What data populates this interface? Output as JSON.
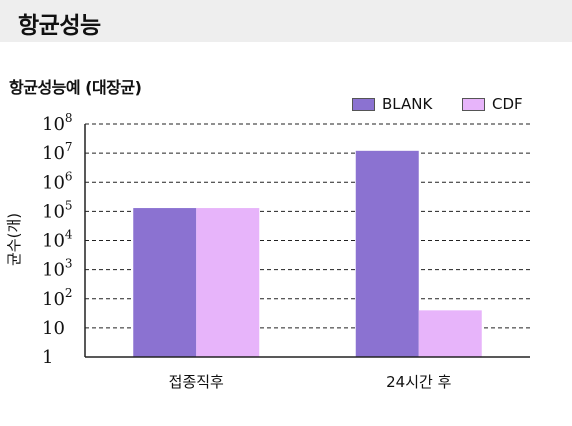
{
  "section": {
    "title": "항균성능"
  },
  "chart_data": {
    "type": "bar",
    "title": "항균성능예 (대장균)",
    "ylabel": "균수(개)",
    "xlabel": "",
    "yscale": "log",
    "ylim": [
      1,
      100000000
    ],
    "yticks": [
      {
        "value": 1,
        "base": "1",
        "exp": ""
      },
      {
        "value": 10,
        "base": "10",
        "exp": ""
      },
      {
        "value": 100,
        "base": "10",
        "exp": "2"
      },
      {
        "value": 1000,
        "base": "10",
        "exp": "3"
      },
      {
        "value": 10000,
        "base": "10",
        "exp": "4"
      },
      {
        "value": 100000,
        "base": "10",
        "exp": "5"
      },
      {
        "value": 1000000,
        "base": "10",
        "exp": "6"
      },
      {
        "value": 10000000,
        "base": "10",
        "exp": "7"
      },
      {
        "value": 100000000,
        "base": "10",
        "exp": "8"
      }
    ],
    "categories": [
      "접종직후",
      "24시간 후"
    ],
    "series": [
      {
        "name": "BLANK",
        "color": "#8b72d1",
        "values": [
          130000,
          12000000
        ]
      },
      {
        "name": "CDF",
        "color": "#e7b4fa",
        "values": [
          130000,
          40
        ]
      }
    ],
    "grid": true,
    "gridstyle": "dashed",
    "legend_position": "top-right"
  }
}
